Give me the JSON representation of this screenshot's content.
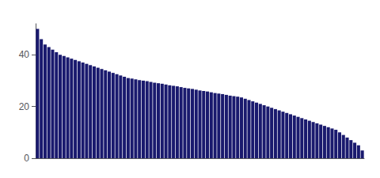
{
  "chart_data": {
    "type": "bar",
    "categories": [
      null,
      null,
      null,
      null,
      null,
      null,
      null,
      null,
      null,
      null,
      null,
      null,
      null,
      null,
      null,
      null,
      null,
      null,
      null,
      null,
      null,
      null,
      null,
      null,
      null,
      null,
      null,
      null,
      null,
      null,
      null,
      null,
      null,
      null,
      null,
      null,
      null,
      null,
      null,
      null,
      null,
      null,
      null,
      null,
      null,
      null,
      null,
      null,
      null,
      null,
      null,
      null,
      null,
      null,
      null,
      null,
      null,
      null,
      null,
      null,
      null,
      null,
      null,
      null,
      null,
      null,
      null,
      null,
      null,
      null,
      null,
      null,
      null,
      null,
      null,
      null,
      null,
      null,
      null,
      null,
      null,
      null,
      null,
      null,
      null,
      null,
      null
    ],
    "values": [
      50,
      46,
      44,
      43,
      42,
      41,
      40,
      39.5,
      39,
      38.5,
      38,
      37.5,
      37,
      36.5,
      36,
      35.5,
      35,
      34.5,
      34,
      33.5,
      33,
      32.5,
      32,
      31.5,
      31,
      30.8,
      30.5,
      30.2,
      30,
      29.8,
      29.5,
      29.2,
      29,
      28.8,
      28.5,
      28.2,
      28,
      27.8,
      27.5,
      27.2,
      27,
      26.8,
      26.5,
      26.2,
      26,
      25.8,
      25.5,
      25.2,
      25,
      24.8,
      24.5,
      24.2,
      24,
      23.8,
      23.5,
      23,
      22.5,
      22,
      21.5,
      21,
      20.5,
      20,
      19.5,
      19,
      18.5,
      18,
      17.5,
      17,
      16.5,
      16,
      15.5,
      15,
      14.5,
      14,
      13.5,
      13,
      12.5,
      12,
      11.5,
      11,
      10,
      9,
      8,
      7,
      6,
      5,
      3
    ],
    "color": "#1a1a6e",
    "ylim": [
      0,
      52
    ],
    "yticks": [
      0,
      20,
      40
    ],
    "grid": false,
    "tick_labels": "y"
  }
}
